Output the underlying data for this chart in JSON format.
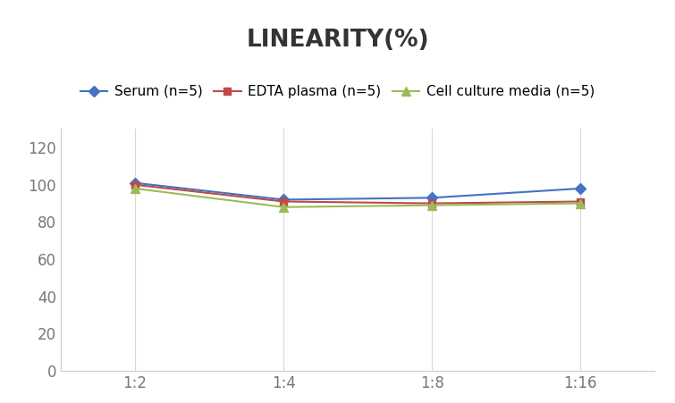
{
  "title": "LINEARITY(%)",
  "x_labels": [
    "1:2",
    "1:4",
    "1:8",
    "1:16"
  ],
  "x_positions": [
    0,
    1,
    2,
    3
  ],
  "series": [
    {
      "label": "Serum (n=5)",
      "values": [
        101,
        92,
        93,
        98
      ],
      "color": "#4472C4",
      "marker": "D",
      "markersize": 6
    },
    {
      "label": "EDTA plasma (n=5)",
      "values": [
        100,
        91,
        90,
        91
      ],
      "color": "#BE4B48",
      "marker": "s",
      "markersize": 6
    },
    {
      "label": "Cell culture media (n=5)",
      "values": [
        98,
        88,
        89,
        90
      ],
      "color": "#9BBB59",
      "marker": "^",
      "markersize": 7
    }
  ],
  "ylim": [
    0,
    130
  ],
  "yticks": [
    0,
    20,
    40,
    60,
    80,
    100,
    120
  ],
  "grid_color": "#D9D9D9",
  "background_color": "#FFFFFF",
  "title_fontsize": 19,
  "legend_fontsize": 11,
  "tick_fontsize": 12,
  "tick_color": "#777777"
}
